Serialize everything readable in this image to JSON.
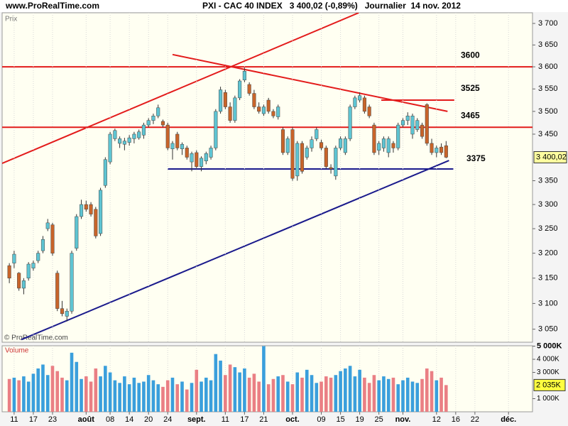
{
  "header": {
    "site": "www.ProRealTime.com",
    "title": "PXI - CAC 40 INDEX   3 400,02 (-0,89%)   Journalier  14 nov. 2012"
  },
  "chart_data": {
    "type": "candlestick",
    "price_panel_label": "Prix",
    "volume_panel_label": "Volume",
    "copyright": "© ProRealTime.com",
    "log_scale": true,
    "grid": true,
    "up_color": "#5ec4d2",
    "down_color": "#c8642a",
    "vol_up_color": "#3a9fdc",
    "vol_down_color": "#ea7f84",
    "xlim": [
      -1.5,
      109
    ],
    "ylim": [
      3025,
      3725
    ],
    "volume_ylim": [
      0,
      5030
    ],
    "xticks": [
      {
        "value": 1,
        "label": "11"
      },
      {
        "value": 5,
        "label": "17"
      },
      {
        "value": 9,
        "label": "23"
      },
      {
        "value": 16,
        "label": "août"
      },
      {
        "value": 21,
        "label": "08"
      },
      {
        "value": 25,
        "label": "14"
      },
      {
        "value": 29,
        "label": "20"
      },
      {
        "value": 33,
        "label": "24"
      },
      {
        "value": 39,
        "label": "sept."
      },
      {
        "value": 45,
        "label": "11"
      },
      {
        "value": 49,
        "label": "17"
      },
      {
        "value": 53,
        "label": "21"
      },
      {
        "value": 59,
        "label": "oct."
      },
      {
        "value": 65,
        "label": "09"
      },
      {
        "value": 69,
        "label": "15"
      },
      {
        "value": 73,
        "label": "19"
      },
      {
        "value": 77,
        "label": "25"
      },
      {
        "value": 82,
        "label": "nov."
      },
      {
        "value": 89,
        "label": "12"
      },
      {
        "value": 93,
        "label": "16"
      },
      {
        "value": 97,
        "label": "22"
      },
      {
        "value": 104,
        "label": "déc."
      }
    ],
    "yticks": [
      {
        "value": 3050,
        "label": "3 050"
      },
      {
        "value": 3100,
        "label": "3 100"
      },
      {
        "value": 3150,
        "label": "3 150"
      },
      {
        "value": 3200,
        "label": "3 200"
      },
      {
        "value": 3250,
        "label": "3 250"
      },
      {
        "value": 3300,
        "label": "3 300"
      },
      {
        "value": 3350,
        "label": "3 350"
      },
      {
        "value": 3450,
        "label": "3 450"
      },
      {
        "value": 3500,
        "label": "3 500"
      },
      {
        "value": 3550,
        "label": "3 550"
      },
      {
        "value": 3600,
        "label": "3 600"
      },
      {
        "value": 3650,
        "label": "3 650"
      },
      {
        "value": 3700,
        "label": "3 700"
      }
    ],
    "volume_yticks": [
      {
        "value": 1000,
        "label": "1 000K"
      },
      {
        "value": 3000,
        "label": "3 000K"
      },
      {
        "value": 4000,
        "label": "4 000K"
      },
      {
        "value": 5000,
        "label": "5 000K"
      }
    ],
    "price_last_label": "3 400,02",
    "volume_last_label": "2 035K",
    "x": [
      0,
      1,
      2,
      3,
      4,
      5,
      6,
      7,
      8,
      9,
      10,
      11,
      12,
      13,
      14,
      15,
      16,
      17,
      18,
      19,
      20,
      21,
      22,
      23,
      24,
      25,
      26,
      27,
      28,
      29,
      30,
      31,
      32,
      33,
      34,
      35,
      36,
      37,
      38,
      39,
      40,
      41,
      42,
      43,
      44,
      45,
      46,
      47,
      48,
      49,
      50,
      51,
      52,
      53,
      54,
      55,
      56,
      57,
      58,
      59,
      60,
      61,
      62,
      63,
      64,
      65,
      66,
      67,
      68,
      69,
      70,
      71,
      72,
      73,
      74,
      75,
      76,
      77,
      78,
      79,
      80,
      81,
      82,
      83,
      84,
      85,
      86,
      87,
      88,
      89,
      90,
      91
    ],
    "open": [
      3175,
      3180,
      3160,
      3130,
      3150,
      3170,
      3185,
      3205,
      3250,
      3258,
      3160,
      3090,
      3075,
      3085,
      3210,
      3275,
      3300,
      3300,
      3290,
      3240,
      3340,
      3390,
      3440,
      3430,
      3428,
      3432,
      3440,
      3442,
      3448,
      3470,
      3480,
      3490,
      3478,
      3470,
      3418,
      3450,
      3418,
      3420,
      3390,
      3410,
      3380,
      3392,
      3400,
      3420,
      3500,
      3542,
      3510,
      3480,
      3530,
      3570,
      3560,
      3540,
      3510,
      3495,
      3525,
      3500,
      3488,
      3460,
      3410,
      3460,
      3360,
      3430,
      3400,
      3420,
      3440,
      3432,
      3420,
      3378,
      3360,
      3420,
      3410,
      3440,
      3510,
      3525,
      3530,
      3510,
      3470,
      3415,
      3420,
      3410,
      3430,
      3420,
      3470,
      3480,
      3450,
      3460,
      3470,
      3515,
      3430,
      3410,
      3422,
      3425
    ],
    "high": [
      3180,
      3205,
      3162,
      3150,
      3182,
      3185,
      3205,
      3235,
      3270,
      3262,
      3165,
      3105,
      3090,
      3205,
      3280,
      3310,
      3308,
      3305,
      3295,
      3335,
      3400,
      3455,
      3462,
      3445,
      3442,
      3448,
      3455,
      3460,
      3475,
      3485,
      3495,
      3515,
      3482,
      3475,
      3435,
      3455,
      3432,
      3425,
      3412,
      3415,
      3402,
      3412,
      3425,
      3505,
      3555,
      3548,
      3520,
      3535,
      3572,
      3598,
      3565,
      3548,
      3520,
      3515,
      3530,
      3505,
      3515,
      3465,
      3445,
      3465,
      3435,
      3435,
      3425,
      3445,
      3465,
      3438,
      3425,
      3385,
      3425,
      3445,
      3445,
      3515,
      3535,
      3542,
      3535,
      3515,
      3475,
      3435,
      3445,
      3445,
      3435,
      3475,
      3485,
      3498,
      3495,
      3485,
      3475,
      3518,
      3440,
      3425,
      3430,
      3435
    ],
    "low": [
      3140,
      3170,
      3125,
      3118,
      3145,
      3165,
      3180,
      3200,
      3245,
      3195,
      3085,
      3075,
      3065,
      3080,
      3205,
      3270,
      3285,
      3275,
      3230,
      3235,
      3335,
      3385,
      3435,
      3420,
      3415,
      3425,
      3430,
      3438,
      3440,
      3465,
      3472,
      3485,
      3465,
      3415,
      3395,
      3415,
      3405,
      3395,
      3370,
      3375,
      3370,
      3385,
      3395,
      3415,
      3495,
      3505,
      3475,
      3475,
      3525,
      3565,
      3535,
      3505,
      3495,
      3490,
      3495,
      3485,
      3482,
      3405,
      3405,
      3350,
      3350,
      3365,
      3395,
      3412,
      3435,
      3415,
      3375,
      3365,
      3352,
      3415,
      3405,
      3435,
      3505,
      3520,
      3495,
      3485,
      3405,
      3405,
      3412,
      3400,
      3410,
      3415,
      3465,
      3470,
      3440,
      3455,
      3440,
      3425,
      3405,
      3400,
      3405,
      3398
    ],
    "close": [
      3150,
      3198,
      3130,
      3145,
      3178,
      3180,
      3200,
      3228,
      3262,
      3200,
      3090,
      3080,
      3085,
      3200,
      3275,
      3300,
      3290,
      3280,
      3235,
      3330,
      3395,
      3450,
      3458,
      3440,
      3435,
      3442,
      3450,
      3455,
      3470,
      3480,
      3490,
      3508,
      3470,
      3420,
      3430,
      3420,
      3428,
      3400,
      3408,
      3380,
      3398,
      3408,
      3420,
      3500,
      3548,
      3510,
      3480,
      3530,
      3568,
      3590,
      3540,
      3510,
      3500,
      3510,
      3500,
      3490,
      3510,
      3410,
      3440,
      3355,
      3430,
      3370,
      3420,
      3438,
      3460,
      3420,
      3380,
      3375,
      3420,
      3440,
      3440,
      3510,
      3530,
      3535,
      3500,
      3490,
      3410,
      3430,
      3440,
      3440,
      3420,
      3470,
      3480,
      3490,
      3490,
      3480,
      3445,
      3430,
      3410,
      3420,
      3410,
      3400.02
    ],
    "volume": [
      2500,
      2600,
      2400,
      2700,
      2300,
      2900,
      3300,
      3600,
      2800,
      3500,
      3100,
      2600,
      2400,
      4500,
      3800,
      2500,
      2700,
      2300,
      3300,
      2700,
      3500,
      3000,
      2400,
      2200,
      2700,
      2100,
      2600,
      2200,
      2300,
      2800,
      2400,
      2100,
      1900,
      2400,
      2600,
      2100,
      2300,
      1700,
      2200,
      3200,
      2300,
      2600,
      2400,
      4400,
      3900,
      2800,
      3600,
      3400,
      3000,
      3300,
      2600,
      2900,
      2300,
      5000,
      2100,
      2500,
      2700,
      2800,
      2300,
      2100,
      3000,
      2600,
      3200,
      2800,
      2200,
      2300,
      2700,
      2600,
      2800,
      3100,
      3300,
      3500,
      2700,
      3200,
      2600,
      2200,
      2800,
      2400,
      2700,
      2500,
      2600,
      2100,
      2400,
      2600,
      2300,
      2200,
      2500,
      3300,
      3100,
      2400,
      2600,
      2035
    ],
    "levels": [
      {
        "value": 3600,
        "color": "#e31b1b"
      },
      {
        "value": 3525,
        "color": "#e31b1b"
      },
      {
        "value": 3465,
        "color": "#e31b1b"
      },
      {
        "value": 3375,
        "color": "#1a1a8c"
      }
    ],
    "level_spans": [
      [
        -1.5,
        109
      ],
      [
        77.5,
        92.7
      ],
      [
        -1.5,
        109
      ],
      [
        33,
        92.5
      ]
    ],
    "trendlines": [
      {
        "x1": -1.5,
        "y1": 3387,
        "x2": 72.8,
        "y2": 3725,
        "color": "#e31b1b"
      },
      {
        "x1": 34,
        "y1": 3628,
        "x2": 91.3,
        "y2": 3500,
        "color": "#e31b1b"
      },
      {
        "x1": 2.5,
        "y1": 3030,
        "x2": 91.6,
        "y2": 3393,
        "color": "#1a1a8c"
      }
    ]
  }
}
